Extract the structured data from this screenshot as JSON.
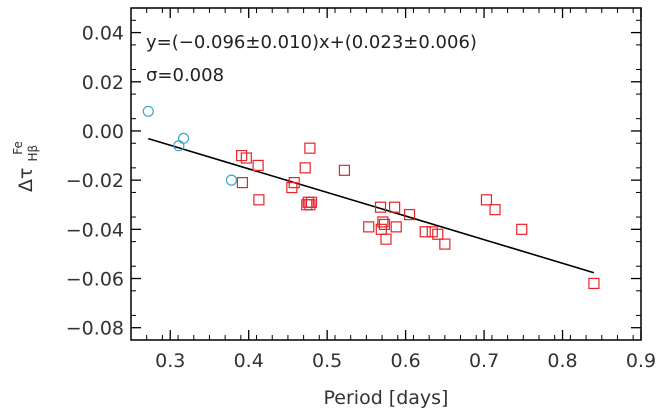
{
  "chart_data": {
    "type": "scatter",
    "title": "",
    "xlabel": "Period [days]",
    "ylabel": "Δτ",
    "ylabel_sub": "Hβ",
    "ylabel_sup": "Fe",
    "xlim": [
      0.25,
      0.9
    ],
    "ylim": [
      -0.085,
      0.05
    ],
    "x_ticks": [
      0.3,
      0.4,
      0.5,
      0.6,
      0.7,
      0.8,
      0.9
    ],
    "x_tick_labels": [
      "0.3",
      "0.4",
      "0.5",
      "0.6",
      "0.7",
      "0.8",
      "0.9"
    ],
    "y_ticks": [
      0.04,
      0.02,
      0.0,
      -0.02,
      -0.04,
      -0.06,
      -0.08
    ],
    "y_tick_labels": [
      "0.04",
      "0.02",
      "0.00",
      "−0.02",
      "−0.04",
      "−0.06",
      "−0.08"
    ],
    "grid": false,
    "annotations": [
      "y=(−0.096±0.010)x+(0.023±0.006)",
      "σ=0.008"
    ],
    "fit_line": {
      "slope": -0.096,
      "intercept": 0.023,
      "x_range": [
        0.272,
        0.84
      ],
      "color": "#000000"
    },
    "series": [
      {
        "marker": "circle",
        "color": "#3aa6c8",
        "x": [
          0.272,
          0.311,
          0.317,
          0.378
        ],
        "y": [
          0.008,
          -0.006,
          -0.003,
          -0.02
        ]
      },
      {
        "marker": "square",
        "color": "#e8232a",
        "x": [
          0.391,
          0.392,
          0.397,
          0.412,
          0.413,
          0.455,
          0.458,
          0.472,
          0.474,
          0.476,
          0.478,
          0.478,
          0.48,
          0.522,
          0.553,
          0.568,
          0.569,
          0.571,
          0.573,
          0.575,
          0.586,
          0.588,
          0.605,
          0.625,
          0.634,
          0.641,
          0.65,
          0.703,
          0.714,
          0.748,
          0.84
        ],
        "y": [
          -0.01,
          -0.021,
          -0.011,
          -0.014,
          -0.028,
          -0.023,
          -0.021,
          -0.015,
          -0.03,
          -0.029,
          -0.007,
          -0.03,
          -0.029,
          -0.016,
          -0.039,
          -0.031,
          -0.04,
          -0.037,
          -0.038,
          -0.044,
          -0.031,
          -0.039,
          -0.034,
          -0.041,
          -0.041,
          -0.042,
          -0.046,
          -0.028,
          -0.032,
          -0.04,
          -0.062
        ]
      }
    ]
  }
}
